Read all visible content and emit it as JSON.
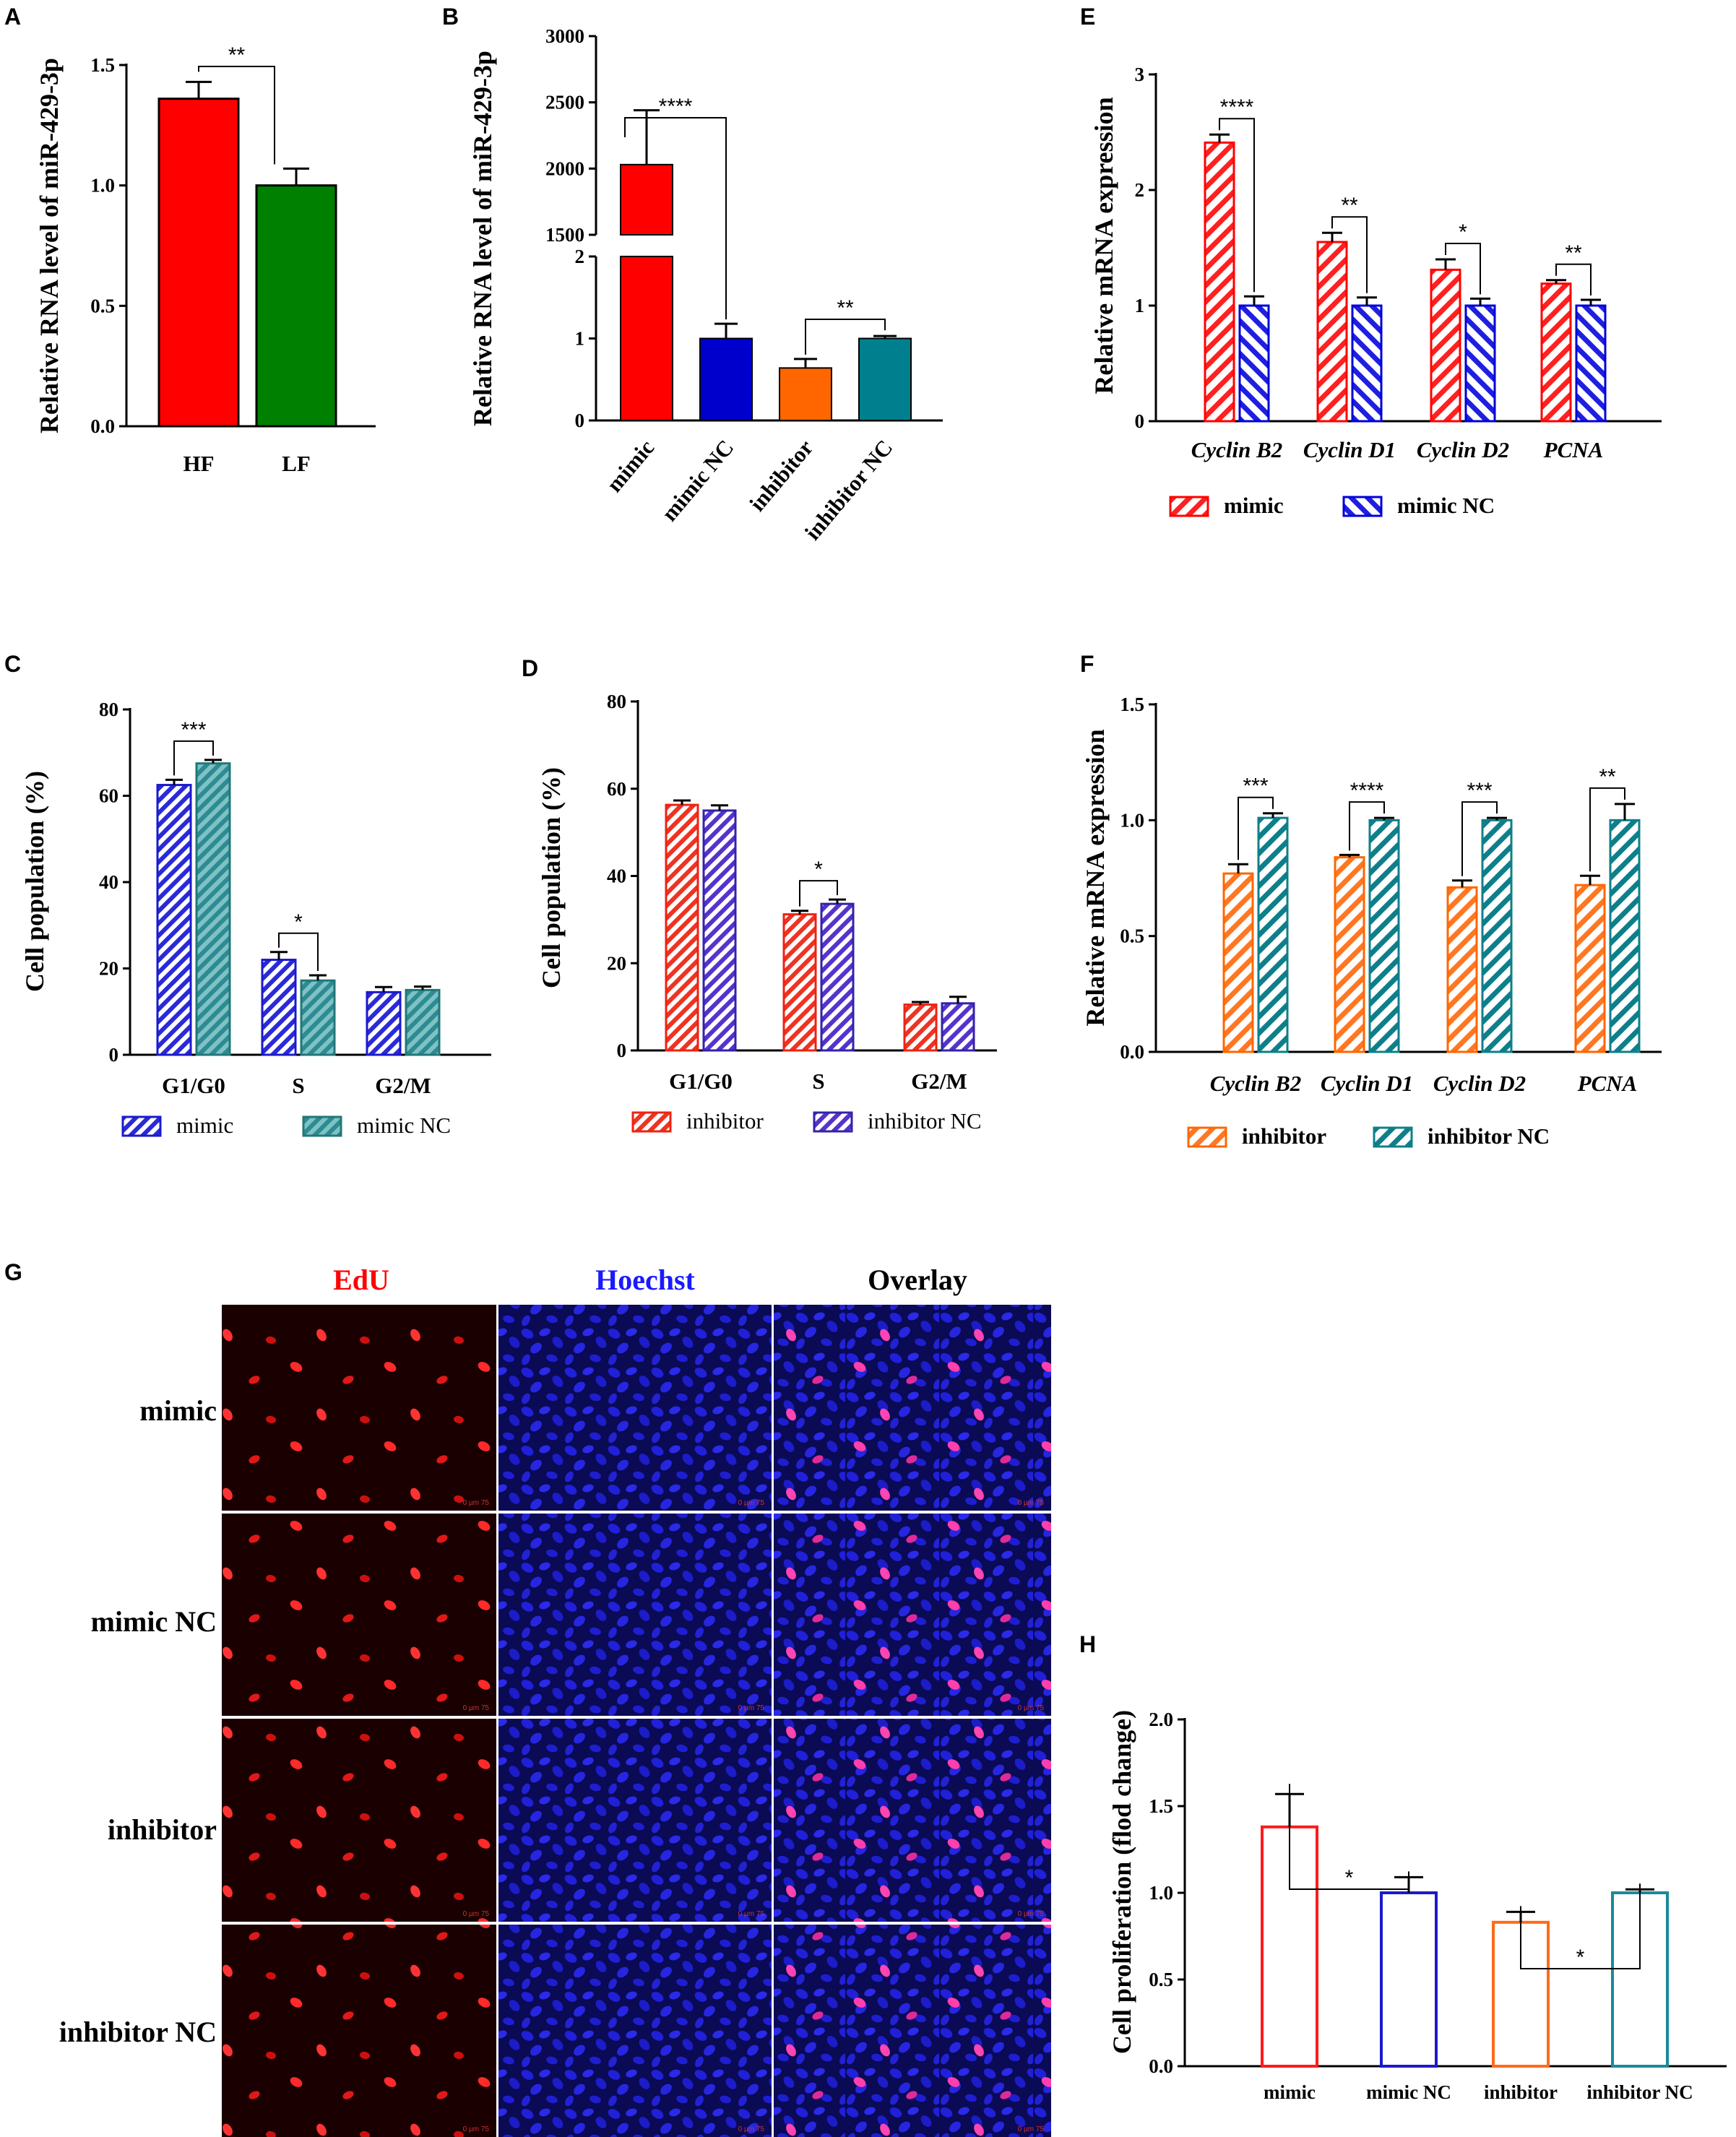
{
  "panels": {
    "A": "A",
    "B": "B",
    "C": "C",
    "D": "D",
    "E": "E",
    "F": "F",
    "G": "G",
    "H": "H"
  },
  "colors": {
    "red": "#ff0000",
    "green": "#008000",
    "blue": "#0000cc",
    "orange": "#ff6600",
    "teal": "#00808f",
    "purple": "#6633cc",
    "navy": "#1b1bcc"
  },
  "chart_data": [
    {
      "id": "A",
      "type": "bar",
      "title": "",
      "ylabel": "Relative RNA level of miR-429-3p",
      "categories": [
        "HF",
        "LF"
      ],
      "values": [
        1.36,
        1.0
      ],
      "errors": [
        0.07,
        0.07
      ],
      "ylim": [
        0,
        1.5
      ],
      "yticks": [
        "0.0",
        "0.5",
        "1.0",
        "1.5"
      ],
      "significance": [
        {
          "pair": [
            "HF",
            "LF"
          ],
          "label": "**"
        }
      ]
    },
    {
      "id": "B",
      "type": "bar",
      "title": "",
      "ylabel": "Relative RNA level of miR-429-3p",
      "categories": [
        "mimic",
        "mimic NC",
        "inhibitor",
        "inhibitor NC"
      ],
      "values": [
        2030,
        1.0,
        0.64,
        1.0
      ],
      "errors": [
        410,
        0.18,
        0.11,
        0.03
      ],
      "ylim": [
        0,
        3000
      ],
      "yaxis_break": [
        2,
        1500
      ],
      "yticks_lower": [
        "0",
        "1",
        "2"
      ],
      "yticks_upper": [
        "1500",
        "2000",
        "2500",
        "3000"
      ],
      "significance": [
        {
          "pair": [
            "mimic",
            "mimic NC"
          ],
          "label": "****"
        },
        {
          "pair": [
            "inhibitor",
            "inhibitor NC"
          ],
          "label": "**"
        }
      ]
    },
    {
      "id": "E",
      "type": "bar",
      "title": "",
      "ylabel": "Relative mRNA expression",
      "categories": [
        "Cyclin B2",
        "Cyclin D1",
        "Cyclin D2",
        "PCNA"
      ],
      "series": [
        {
          "name": "mimic",
          "values": [
            2.41,
            1.55,
            1.31,
            1.19
          ],
          "errors": [
            0.07,
            0.08,
            0.09,
            0.03
          ]
        },
        {
          "name": "mimic NC",
          "values": [
            1.0,
            1.0,
            1.0,
            1.0
          ],
          "errors": [
            0.08,
            0.07,
            0.06,
            0.05
          ]
        }
      ],
      "ylim": [
        0,
        3
      ],
      "yticks": [
        "0",
        "1",
        "2",
        "3"
      ],
      "significance": [
        "****",
        "**",
        "*",
        "**"
      ],
      "legend": [
        "mimic",
        "mimic NC"
      ]
    },
    {
      "id": "C",
      "type": "bar",
      "title": "",
      "ylabel": "Cell population (%)",
      "categories": [
        "G1/G0",
        "S",
        "G2/M"
      ],
      "series": [
        {
          "name": "mimic",
          "values": [
            62.5,
            22.0,
            14.5
          ],
          "errors": [
            1.2,
            1.8,
            1.2
          ]
        },
        {
          "name": "mimic NC",
          "values": [
            67.5,
            17.2,
            15.0
          ],
          "errors": [
            0.8,
            1.2,
            0.8
          ]
        }
      ],
      "ylim": [
        0,
        80
      ],
      "yticks": [
        "0",
        "20",
        "40",
        "60",
        "80"
      ],
      "significance": [
        "***",
        "*",
        ""
      ],
      "legend": [
        "mimic",
        "mimic NC"
      ]
    },
    {
      "id": "D",
      "type": "bar",
      "title": "",
      "ylabel": "Cell population (%)",
      "categories": [
        "G1/G0",
        "S",
        "G2/M"
      ],
      "series": [
        {
          "name": "inhibitor",
          "values": [
            56.3,
            31.2,
            10.5
          ],
          "errors": [
            1.0,
            0.8,
            0.6
          ]
        },
        {
          "name": "inhibitor NC",
          "values": [
            55.0,
            33.6,
            10.8
          ],
          "errors": [
            1.2,
            1.0,
            1.5
          ]
        }
      ],
      "ylim": [
        0,
        80
      ],
      "yticks": [
        "0",
        "20",
        "40",
        "60",
        "80"
      ],
      "significance": [
        "",
        "*",
        ""
      ],
      "legend": [
        "inhibitor",
        "inhibitor NC"
      ]
    },
    {
      "id": "F",
      "type": "bar",
      "title": "",
      "ylabel": "Relative mRNA expression",
      "categories": [
        "Cyclin B2",
        "Cyclin D1",
        "Cyclin D2",
        "PCNA"
      ],
      "series": [
        {
          "name": "inhibitor",
          "values": [
            0.77,
            0.84,
            0.71,
            0.72
          ],
          "errors": [
            0.04,
            0.01,
            0.03,
            0.04
          ]
        },
        {
          "name": "inhibitor NC",
          "values": [
            1.01,
            1.0,
            1.0,
            1.0
          ],
          "errors": [
            0.02,
            0.01,
            0.01,
            0.07
          ]
        }
      ],
      "ylim": [
        0,
        1.5
      ],
      "yticks": [
        "0.0",
        "0.5",
        "1.0",
        "1.5"
      ],
      "significance": [
        "***",
        "****",
        "***",
        "**"
      ],
      "legend": [
        "inhibitor",
        "inhibitor NC"
      ]
    },
    {
      "id": "H",
      "type": "bar",
      "title": "",
      "ylabel": "Cell proliferation (flod change)",
      "categories": [
        "mimic",
        "mimic NC",
        "inhibitor",
        "inhibitor NC"
      ],
      "values": [
        1.38,
        1.0,
        0.83,
        1.0
      ],
      "errors": [
        0.19,
        0.09,
        0.06,
        0.02
      ],
      "ylim": [
        0,
        2.0
      ],
      "yticks": [
        "0.0",
        "0.5",
        "1.0",
        "1.5",
        "2.0"
      ],
      "significance": [
        {
          "pair": [
            "mimic",
            "mimic NC"
          ],
          "label": "*"
        },
        {
          "pair": [
            "inhibitor",
            "inhibitor NC"
          ],
          "label": "*"
        }
      ]
    }
  ],
  "panelG": {
    "columns": [
      "EdU",
      "Hoechst",
      "Overlay"
    ],
    "rows": [
      "mimic",
      "mimic NC",
      "inhibitor",
      "inhibitor NC"
    ],
    "scale_text": "0    µm    75"
  }
}
